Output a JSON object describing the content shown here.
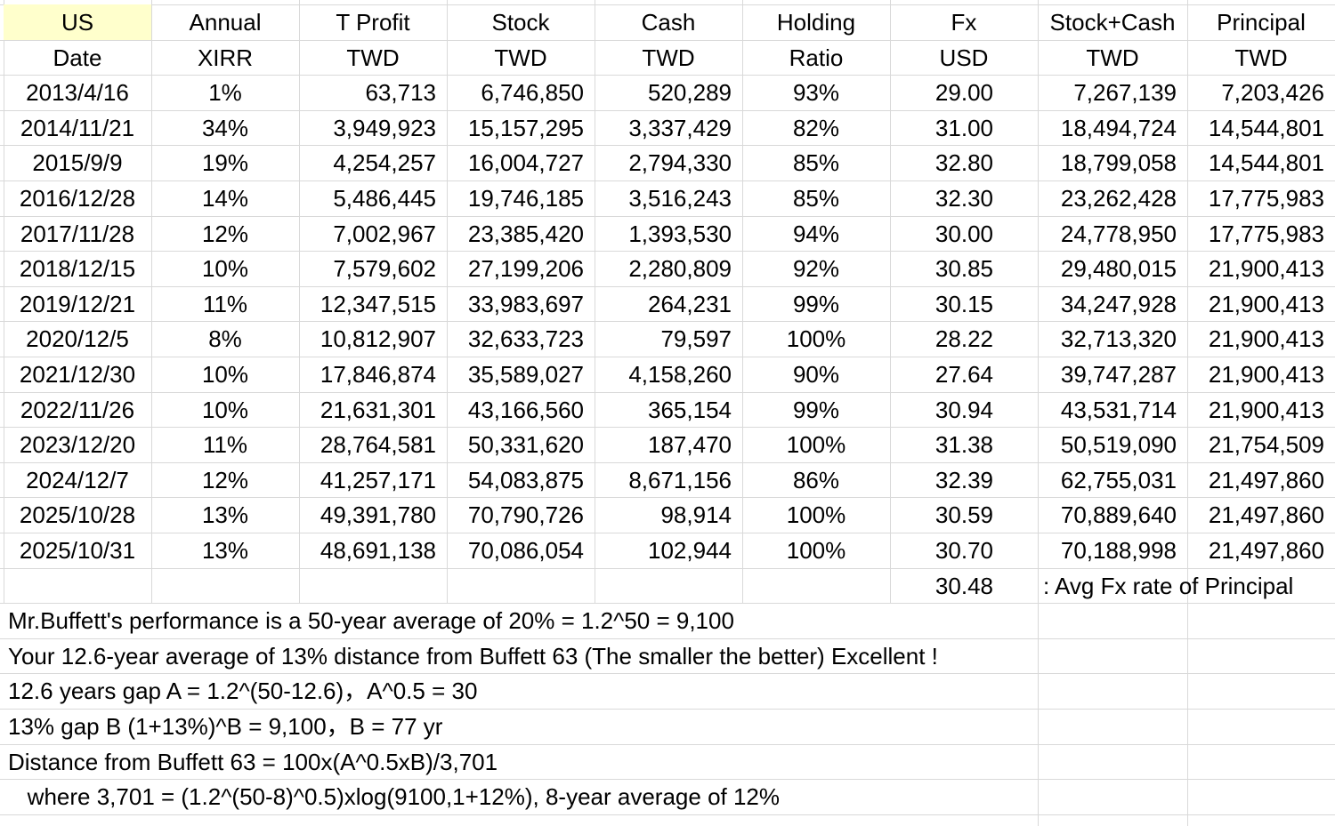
{
  "header1": [
    "US",
    "Annual",
    "T Profit",
    "Stock",
    "Cash",
    "Holding",
    "Fx",
    "Stock+Cash",
    "Principal"
  ],
  "header2": [
    "Date",
    "XIRR",
    "TWD",
    "TWD",
    "TWD",
    "Ratio",
    "USD",
    "TWD",
    "TWD"
  ],
  "highlight_color": "#ffffcc",
  "rows": [
    [
      "2013/4/16",
      "1%",
      "63,713",
      "6,746,850",
      "520,289",
      "93%",
      "29.00",
      "7,267,139",
      "7,203,426"
    ],
    [
      "2014/11/21",
      "34%",
      "3,949,923",
      "15,157,295",
      "3,337,429",
      "82%",
      "31.00",
      "18,494,724",
      "14,544,801"
    ],
    [
      "2015/9/9",
      "19%",
      "4,254,257",
      "16,004,727",
      "2,794,330",
      "85%",
      "32.80",
      "18,799,058",
      "14,544,801"
    ],
    [
      "2016/12/28",
      "14%",
      "5,486,445",
      "19,746,185",
      "3,516,243",
      "85%",
      "32.30",
      "23,262,428",
      "17,775,983"
    ],
    [
      "2017/11/28",
      "12%",
      "7,002,967",
      "23,385,420",
      "1,393,530",
      "94%",
      "30.00",
      "24,778,950",
      "17,775,983"
    ],
    [
      "2018/12/15",
      "10%",
      "7,579,602",
      "27,199,206",
      "2,280,809",
      "92%",
      "30.85",
      "29,480,015",
      "21,900,413"
    ],
    [
      "2019/12/21",
      "11%",
      "12,347,515",
      "33,983,697",
      "264,231",
      "99%",
      "30.15",
      "34,247,928",
      "21,900,413"
    ],
    [
      "2020/12/5",
      "8%",
      "10,812,907",
      "32,633,723",
      "79,597",
      "100%",
      "28.22",
      "32,713,320",
      "21,900,413"
    ],
    [
      "2021/12/30",
      "10%",
      "17,846,874",
      "35,589,027",
      "4,158,260",
      "90%",
      "27.64",
      "39,747,287",
      "21,900,413"
    ],
    [
      "2022/11/26",
      "10%",
      "21,631,301",
      "43,166,560",
      "365,154",
      "99%",
      "30.94",
      "43,531,714",
      "21,900,413"
    ],
    [
      "2023/12/20",
      "11%",
      "28,764,581",
      "50,331,620",
      "187,470",
      "100%",
      "31.38",
      "50,519,090",
      "21,754,509"
    ],
    [
      "2024/12/7",
      "12%",
      "41,257,171",
      "54,083,875",
      "8,671,156",
      "86%",
      "32.39",
      "62,755,031",
      "21,497,860"
    ],
    [
      "2025/10/28",
      "13%",
      "49,391,780",
      "70,790,726",
      "98,914",
      "100%",
      "30.59",
      "70,889,640",
      "21,497,860"
    ],
    [
      "2025/10/31",
      "13%",
      "48,691,138",
      "70,086,054",
      "102,944",
      "100%",
      "30.70",
      "70,188,998",
      "21,497,860"
    ]
  ],
  "avg_fx": {
    "value": "30.48",
    "label": ": Avg Fx rate of Principal"
  },
  "notes": [
    "Mr.Buffett's performance is a 50-year average of 20% = 1.2^50 = 9,100",
    "Your 12.6-year average of 13% distance from Buffett 63 (The smaller the better) Excellent !",
    "12.6 years gap A = 1.2^(50-12.6)，A^0.5 = 30",
    "13% gap B (1+13%)^B = 9,100，B = 77 yr",
    "Distance from Buffett 63 = 100x(A^0.5xB)/3,701",
    "   where 3,701 = (1.2^(50-8)^0.5)xlog(9100,1+12%), 8-year average of 12%"
  ]
}
